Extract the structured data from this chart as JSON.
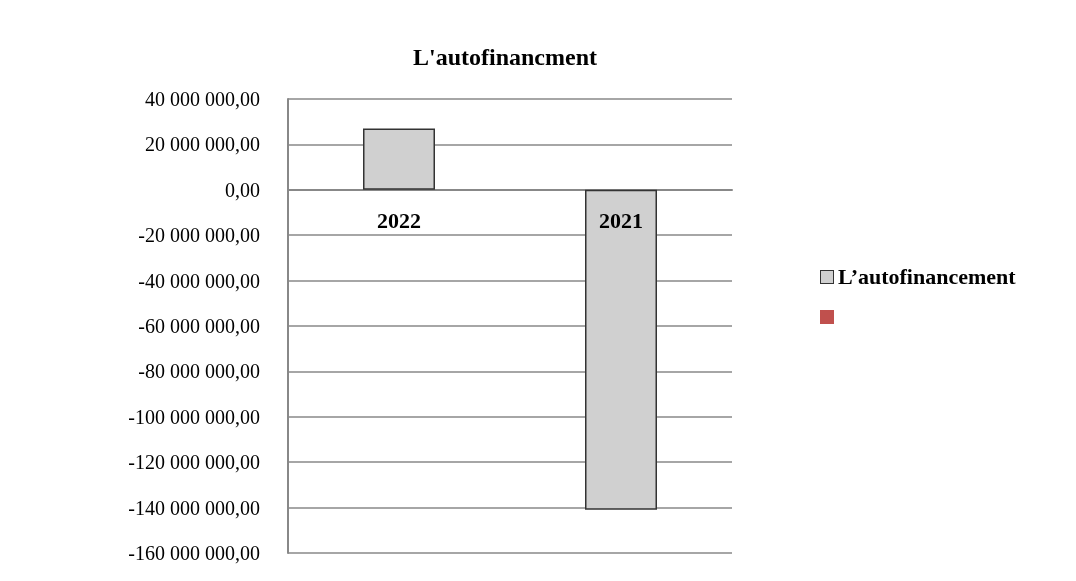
{
  "chart_data": {
    "type": "bar",
    "title": "L'autofinancment",
    "categories": [
      "2022",
      "2021"
    ],
    "series": [
      {
        "name": "L’autofinancement",
        "color": "#d0d0d0",
        "values": [
          27000000,
          -141000000
        ]
      },
      {
        "color": "#c0504d",
        "values": [
          null,
          null
        ]
      }
    ],
    "ylim": [
      -160000000,
      40000000
    ],
    "yticks": [
      {
        "value": -160000000,
        "label": "-160 000 000,00"
      },
      {
        "value": -140000000,
        "label": "-140 000 000,00"
      },
      {
        "value": -120000000,
        "label": "-120 000 000,00"
      },
      {
        "value": -100000000,
        "label": "-100 000 000,00"
      },
      {
        "value": -80000000,
        "label": "-80 000 000,00"
      },
      {
        "value": -60000000,
        "label": "-60 000 000,00"
      },
      {
        "value": -40000000,
        "label": "-40 000 000,00"
      },
      {
        "value": -20000000,
        "label": "-20 000 000,00"
      },
      {
        "value": 0,
        "label": "0,00"
      },
      {
        "value": 20000000,
        "label": "20 000 000,00"
      },
      {
        "value": 40000000,
        "label": "40 000 000,00"
      }
    ],
    "grid": "y",
    "legend": "right"
  }
}
